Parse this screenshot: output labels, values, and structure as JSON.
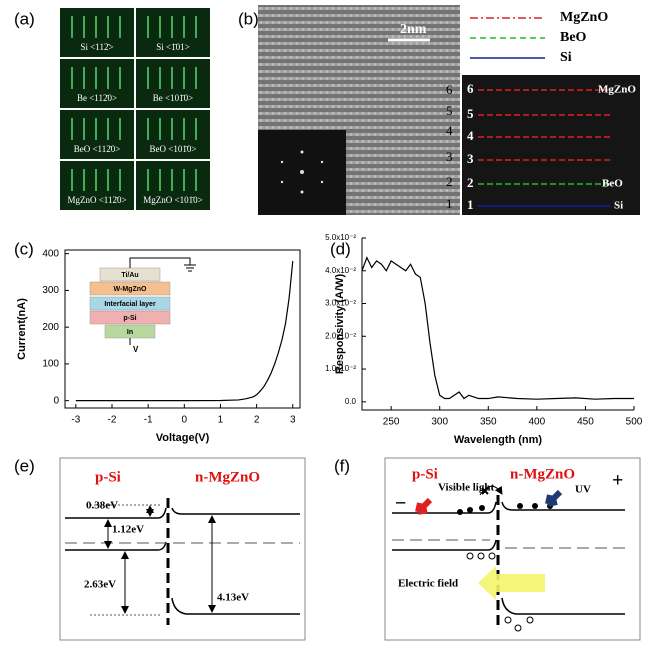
{
  "panels": {
    "a": {
      "label": "(a)",
      "images": [
        "Si <112̄>",
        "Si <1̄01>",
        "Be <112̄0>",
        "Be <101̄0>",
        "BeO <112̄0>",
        "BeO <101̄0>",
        "MgZnO <112̄0>",
        "MgZnO <101̄0>"
      ]
    },
    "b": {
      "label": "(b)",
      "scale": "2nm",
      "layers": [
        "6",
        "5",
        "4",
        "3",
        "2",
        "1"
      ],
      "legend": [
        "MgZnO",
        "BeO",
        "Si"
      ],
      "fft_layers": [
        "6",
        "5",
        "4",
        "3",
        "2",
        "1"
      ],
      "fft_labels": [
        "MgZnO",
        "BeO",
        "Si"
      ]
    },
    "c": {
      "label": "(c)",
      "inset": [
        "Ti/Au",
        "W-MgZnO",
        "Interfacial layer",
        "p-Si",
        "In",
        "V"
      ]
    },
    "d": {
      "label": "(d)"
    },
    "e": {
      "label": "(e)",
      "left": "p-Si",
      "right": "n-MgZnO",
      "energies": [
        "0.38eV",
        "1.12eV",
        "2.63eV",
        "4.13eV"
      ]
    },
    "f": {
      "label": "(f)",
      "left": "p-Si",
      "right": "n-MgZnO",
      "visible": "Visible light",
      "uv": "UV",
      "field": "Electric field",
      "minus": "−",
      "plus": "+"
    }
  },
  "chart_data": [
    {
      "type": "line",
      "x_label": "Voltage(V)",
      "y_label": "Current(nA)",
      "color": "#000000",
      "x": [
        -3,
        -2,
        -1,
        0,
        1,
        1.5,
        1.7,
        1.9,
        2.0,
        2.1,
        2.2,
        2.3,
        2.4,
        2.5,
        2.6,
        2.7,
        2.8,
        2.9,
        3.0
      ],
      "values": [
        0,
        0,
        0,
        0,
        0.5,
        2,
        5,
        10,
        16,
        26,
        38,
        55,
        75,
        100,
        130,
        165,
        210,
        280,
        380
      ],
      "xlim": [
        -3.3,
        3.2
      ],
      "ylim": [
        -20,
        410
      ],
      "xticks": [
        -3,
        -2,
        -1,
        0,
        1,
        2,
        3
      ],
      "yticks": [
        0,
        100,
        200,
        300,
        400
      ]
    },
    {
      "type": "line",
      "x_label": "Wavelength (nm)",
      "y_label": "Responsivity (A/W)",
      "color": "#000000",
      "x": [
        220,
        225,
        230,
        235,
        240,
        245,
        250,
        255,
        260,
        265,
        270,
        275,
        280,
        285,
        290,
        295,
        300,
        305,
        310,
        320,
        325,
        330,
        340,
        350,
        360,
        380,
        400,
        420,
        440,
        460,
        480,
        500
      ],
      "values": [
        0.04,
        0.044,
        0.041,
        0.043,
        0.042,
        0.04,
        0.043,
        0.042,
        0.041,
        0.04,
        0.042,
        0.039,
        0.038,
        0.03,
        0.018,
        0.008,
        0.002,
        0.001,
        0.001,
        0.003,
        0.001,
        0.002,
        0.001,
        0.001,
        0.0015,
        0.001,
        0.0008,
        0.001,
        0.0012,
        0.0008,
        0.001,
        0.001
      ],
      "xlim": [
        220,
        500
      ],
      "ylim": [
        -0.0025,
        0.05
      ],
      "xticks": [
        250,
        300,
        350,
        400,
        450,
        500
      ],
      "yticks": [
        {
          "value": 0,
          "label": "0.0"
        },
        {
          "value": 0.01,
          "label": "1.0x10⁻²"
        },
        {
          "value": 0.02,
          "label": "2.0x10⁻²"
        },
        {
          "value": 0.03,
          "label": "3.0x10⁻²"
        },
        {
          "value": 0.04,
          "label": "4.0x10⁻²"
        },
        {
          "value": 0.05,
          "label": "5.0x10⁻²"
        }
      ]
    }
  ]
}
